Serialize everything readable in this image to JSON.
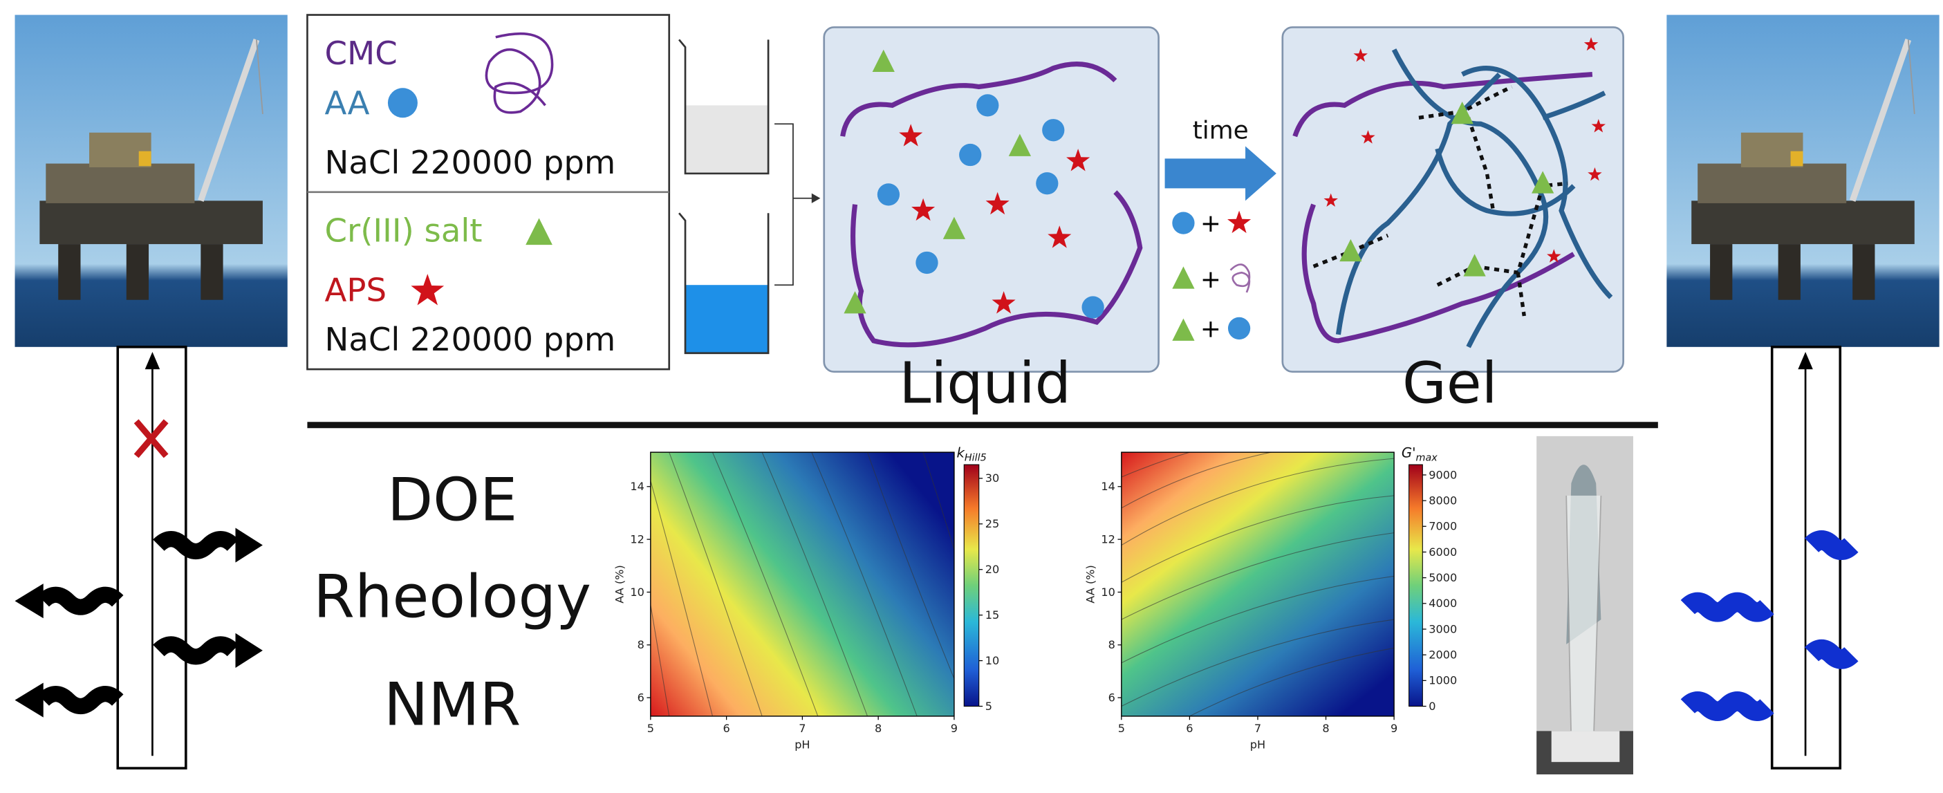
{
  "reagents": {
    "top": [
      "CMC",
      "AA",
      "NaCl 220000 ppm"
    ],
    "bottom": [
      "Cr(III) salt",
      "APS",
      "NaCl 220000 ppm"
    ]
  },
  "states": {
    "liquid": "Liquid",
    "gel": "Gel",
    "arrow": "time"
  },
  "reactions": [
    "+",
    "+",
    "+"
  ],
  "methods": [
    "DOE",
    "Rheology",
    "NMR"
  ],
  "plots": [
    {
      "xlabel": "pH",
      "ylabel": "AA (%)",
      "xlim": [
        5,
        9
      ],
      "ylim": [
        5.3,
        15.3
      ],
      "xticks": [
        5,
        6,
        7,
        8,
        9
      ],
      "yticks": [
        6,
        8,
        10,
        12,
        14
      ],
      "colorbar": {
        "label": "k",
        "label_sub": "Hill5",
        "lim": [
          5,
          31.5
        ],
        "ticks": [
          5,
          10,
          15,
          20,
          25,
          30
        ]
      }
    },
    {
      "xlabel": "pH",
      "ylabel": "AA (%)",
      "xlim": [
        5,
        9
      ],
      "ylim": [
        5.3,
        15.3
      ],
      "xticks": [
        5,
        6,
        7,
        8,
        9
      ],
      "yticks": [
        6,
        8,
        10,
        12,
        14
      ],
      "colorbar": {
        "label": "G'",
        "label_sub": "max",
        "lim": [
          0,
          9400
        ],
        "ticks": [
          0,
          1000,
          2000,
          3000,
          4000,
          5000,
          6000,
          7000,
          8000,
          9000
        ]
      }
    }
  ]
}
